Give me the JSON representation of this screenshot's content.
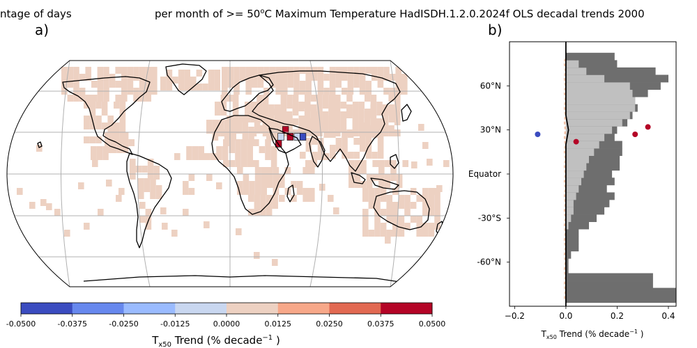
{
  "title": {
    "left_fragment": "ntage of days",
    "right_fragment": "per month of >= 50",
    "degree_unit": "o",
    "right_rest": "C Maximum Temperature HadISDH.1.2.0.2024f OLS decadal trends 2000"
  },
  "panel_a_label": "a)",
  "panel_b_label": "b)",
  "colorbar": {
    "label_main": "T",
    "label_sub": "x50",
    "label_mid": " Trend (% decade",
    "label_sup": "−1",
    "label_end": " )",
    "ticks": [
      "-0.0500",
      "-0.0375",
      "-0.0250",
      "-0.0125",
      "0.0000",
      "0.0125",
      "0.0250",
      "0.0375",
      "0.0500"
    ],
    "colors": [
      "#3b4cc0",
      "#6788ee",
      "#9abbff",
      "#c9d7f0",
      "#edd1c2",
      "#f7a889",
      "#e26952",
      "#b40426"
    ]
  },
  "panel_b": {
    "xlabel_main": "T",
    "xlabel_sub": "x50",
    "xlabel_mid": " Trend (% decade",
    "xlabel_sup": "−1",
    "xlabel_end": " )",
    "xticks": [
      "−0.2",
      "0.0",
      "0.2",
      "0.4"
    ],
    "ylabels": [
      "60°N",
      "30°N",
      "Equator",
      "-30°S",
      "-60°N"
    ]
  },
  "chart_data": [
    {
      "type": "heatmap",
      "description_scope": "gridded trend map (Robinson projection) with land outlines",
      "value_range": [
        -0.05,
        0.05
      ],
      "colorbar_bounds": [
        -0.05,
        -0.0375,
        -0.025,
        -0.0125,
        0.0,
        0.0125,
        0.025,
        0.0375,
        0.05
      ],
      "highlight_cells": [
        {
          "lon": 48,
          "lat": 32,
          "value": 0.05
        },
        {
          "lon": 42,
          "lat": 22,
          "value": 0.05
        },
        {
          "lon": 52,
          "lat": 27,
          "value": 0.05
        },
        {
          "lon": 58,
          "lat": 27,
          "value": -0.01
        },
        {
          "lon": 63,
          "lat": 27,
          "value": -0.045
        },
        {
          "lon": 44,
          "lat": 27,
          "value": 0.0
        }
      ]
    },
    {
      "type": "bar",
      "orientation": "horizontal",
      "xlim": [
        -0.22,
        0.43
      ],
      "ylim": [
        -90,
        90
      ],
      "xticks": [
        -0.2,
        0.0,
        0.2,
        0.4
      ],
      "yticks": [
        60,
        30,
        0,
        -30,
        -60
      ],
      "lat_bins": [
        -85,
        -80,
        -75,
        -70,
        -65,
        -60,
        -55,
        -50,
        -45,
        -40,
        -35,
        -30,
        -25,
        -20,
        -15,
        -10,
        -5,
        0,
        5,
        10,
        15,
        20,
        25,
        30,
        35,
        40,
        45,
        50,
        55,
        60,
        65,
        70,
        75,
        80
      ],
      "grey_dark": [
        0.43,
        0.43,
        0.34,
        0.34,
        0.01,
        0.01,
        0.02,
        0.05,
        0.05,
        0.05,
        0.09,
        0.12,
        0.15,
        0.17,
        0.19,
        0.16,
        0.19,
        0.18,
        0.21,
        0.21,
        0.22,
        0.22,
        0.19,
        0.2,
        0.24,
        0.26,
        0.28,
        0.27,
        0.32,
        0.37,
        0.4,
        0.35,
        0.2,
        0.19
      ],
      "grey_light": [
        0,
        0,
        0,
        0,
        0,
        0,
        0,
        0,
        0,
        0,
        0.01,
        0.02,
        0.03,
        0.03,
        0.04,
        0.05,
        0.06,
        0.07,
        0.08,
        0.09,
        0.11,
        0.13,
        0.15,
        0.18,
        0.22,
        0.25,
        0.27,
        0.27,
        0.26,
        0.25,
        0.15,
        0.08,
        0.05,
        0
      ],
      "black_line_x": [
        0,
        0,
        0,
        0,
        0,
        0,
        0,
        0,
        0,
        0,
        0,
        0,
        0,
        0,
        0,
        0,
        0,
        0,
        0,
        0,
        0,
        0,
        0.005,
        0.01,
        0.005,
        0,
        0,
        0,
        0,
        0,
        0,
        0,
        0,
        0
      ],
      "points": [
        {
          "lat": 27,
          "value": -0.11,
          "color": "#3b4cc0"
        },
        {
          "lat": 22,
          "value": 0.04,
          "color": "#b40426"
        },
        {
          "lat": 27,
          "value": 0.27,
          "color": "#b40426"
        },
        {
          "lat": 32,
          "value": 0.32,
          "color": "#b40426"
        }
      ]
    }
  ]
}
